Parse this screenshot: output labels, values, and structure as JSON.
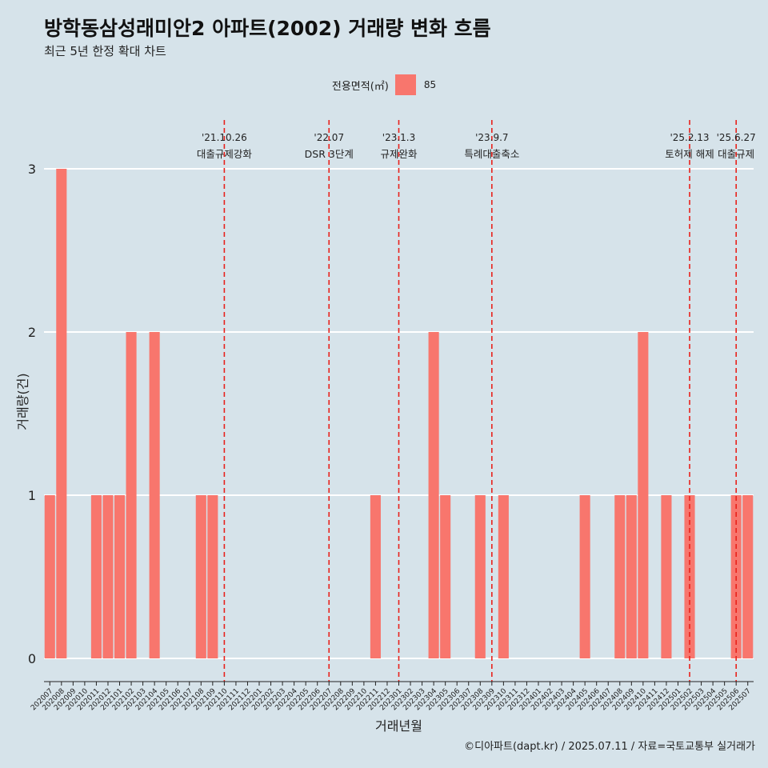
{
  "title": "방학동삼성래미안2 아파트(2002) 거래량 변화 흐름",
  "subtitle": "최근 5년 한정 확대 차트",
  "caption": "©디아파트(dapt.kr) / 2025.07.11 / 자료=국토교통부 실거래가",
  "legend": {
    "title": "전용면적(㎡)",
    "items": [
      {
        "label": "85",
        "color": "#f8766d"
      }
    ]
  },
  "chart_data": {
    "type": "bar",
    "title": "방학동삼성래미안2 아파트(2002) 거래량 변화 흐름",
    "xlabel": "거래년월",
    "ylabel": "거래량(건)",
    "ylim": [
      0,
      3
    ],
    "yticks": [
      0,
      1,
      2,
      3
    ],
    "grid": true,
    "legend_position": "top",
    "categories": [
      "202007",
      "202008",
      "202009",
      "202010",
      "202011",
      "202012",
      "202101",
      "202102",
      "202103",
      "202104",
      "202105",
      "202106",
      "202107",
      "202108",
      "202109",
      "202110",
      "202111",
      "202112",
      "202201",
      "202202",
      "202203",
      "202204",
      "202205",
      "202206",
      "202207",
      "202208",
      "202209",
      "202210",
      "202211",
      "202212",
      "202301",
      "202302",
      "202303",
      "202304",
      "202305",
      "202306",
      "202307",
      "202308",
      "202309",
      "202310",
      "202311",
      "202312",
      "202401",
      "202402",
      "202403",
      "202404",
      "202405",
      "202406",
      "202407",
      "202408",
      "202409",
      "202410",
      "202411",
      "202412",
      "202501",
      "202502",
      "202503",
      "202504",
      "202505",
      "202506",
      "202507"
    ],
    "series": [
      {
        "name": "85",
        "color": "#f8766d",
        "values": [
          1,
          3,
          0,
          0,
          1,
          1,
          1,
          2,
          0,
          2,
          0,
          0,
          0,
          1,
          1,
          0,
          0,
          0,
          0,
          0,
          0,
          0,
          0,
          0,
          0,
          0,
          0,
          0,
          1,
          0,
          0,
          0,
          0,
          2,
          1,
          0,
          0,
          1,
          0,
          1,
          0,
          0,
          0,
          0,
          0,
          0,
          1,
          0,
          0,
          1,
          1,
          2,
          0,
          1,
          0,
          1,
          0,
          0,
          0,
          1,
          1
        ]
      }
    ],
    "events": [
      {
        "category": "202110",
        "date": "'21.10.26",
        "label": "대출규제강화"
      },
      {
        "category": "202207",
        "date": "'22.07",
        "label": "DSR 3단계"
      },
      {
        "category": "202301",
        "date": "'23.1.3",
        "label": "규제완화"
      },
      {
        "category": "202309",
        "date": "'23.9.7",
        "label": "특례대출축소"
      },
      {
        "category": "202502",
        "date": "'25.2.13",
        "label": "토허제 해제"
      },
      {
        "category": "202506",
        "date": "'25.6.27",
        "label": "대출규제"
      }
    ]
  }
}
